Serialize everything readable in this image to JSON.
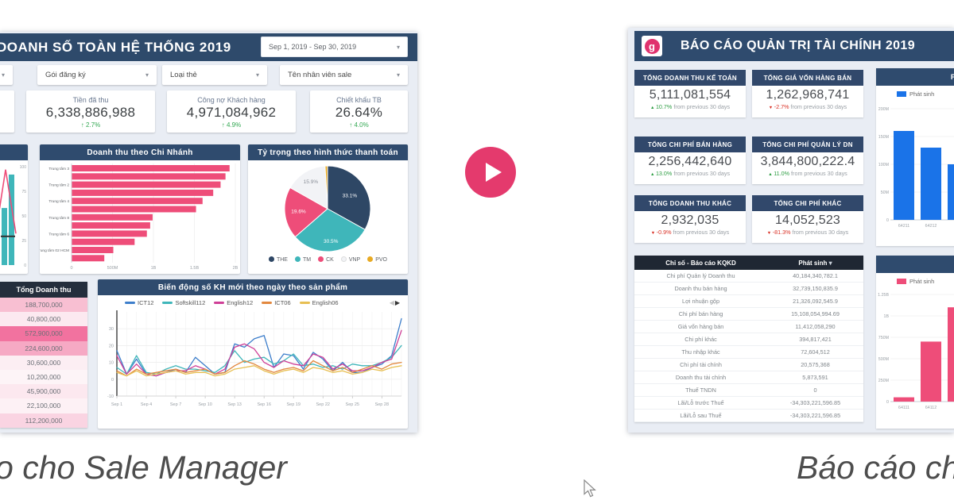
{
  "page": {
    "left_caption": "o cho Sale Manager",
    "right_caption": "Báo cáo cho",
    "accent_color": "#e43a6d"
  },
  "left_dashboard": {
    "title": "DOANH SỐ TOÀN HỆ THỐNG 2019",
    "date_range": "Sep 1, 2019 - Sep 30, 2019",
    "filters": [
      "Gói đăng ký",
      "Loại thẻ",
      "Tên nhân viên sale"
    ],
    "kpis": [
      {
        "label": "Tiền đã thu",
        "value": "6,338,886,988",
        "delta": "2.7%",
        "direction": "up"
      },
      {
        "label": "Công nợ Khách hàng",
        "value": "4,971,084,962",
        "delta": "4.9%",
        "direction": "up"
      },
      {
        "label": "Chiết khấu TB",
        "value": "26.64%",
        "delta": "4.0%",
        "direction": "up"
      }
    ],
    "delta_up_color": "#34a853",
    "delta_down_color": "#d93025",
    "revenue_table": {
      "header": "Tổng Doanh thu",
      "rows": [
        {
          "value": "188,700,000",
          "bg": "#f8bfd2"
        },
        {
          "value": "40,800,000",
          "bg": "#fce9f0"
        },
        {
          "value": "572,900,000",
          "bg": "#f2729f"
        },
        {
          "value": "224,600,000",
          "bg": "#f6a9c4"
        },
        {
          "value": "30,600,000",
          "bg": "#fceef3"
        },
        {
          "value": "10,200,000",
          "bg": "#fdf4f7"
        },
        {
          "value": "45,900,000",
          "bg": "#fce8ef"
        },
        {
          "value": "22,100,000",
          "bg": "#fdf1f5"
        },
        {
          "value": "112,200,000",
          "bg": "#fad4e2"
        }
      ]
    },
    "line_legend_arrows": "◀▶"
  },
  "right_dashboard": {
    "title": "BÁO CÁO QUẢN TRỊ TÀI CHÍNH 2019",
    "logo_letter": "g",
    "kpis": [
      {
        "label": "TỔNG DOANH THU KẾ TOÁN",
        "value": "5,111,081,554",
        "delta": "10.7%",
        "direction": "up",
        "suffix": "from previous 30 days"
      },
      {
        "label": "TỔNG GIÁ VỐN HÀNG BÁN",
        "value": "1,262,968,741",
        "delta": "-2.7%",
        "direction": "down",
        "suffix": "from previous 30 days"
      },
      {
        "label": "TỔNG CHI PHÍ BÁN HÀNG",
        "value": "2,256,442,640",
        "delta": "13.0%",
        "direction": "up",
        "suffix": "from previous 30 days"
      },
      {
        "label": "TỔNG CHI PHÍ QUẢN LÝ DN",
        "value": "3,844,800,222.4",
        "delta": "11.0%",
        "direction": "up",
        "suffix": "from previous 30 days"
      },
      {
        "label": "TỔNG DOANH THU KHÁC",
        "value": "2,932,035",
        "delta": "-0.9%",
        "direction": "down",
        "suffix": "from previous 30 days"
      },
      {
        "label": "TỔNG CHI PHÍ KHÁC",
        "value": "14,052,523",
        "delta": "-81.3%",
        "direction": "down",
        "suffix": "from previous 30 days"
      }
    ],
    "table": {
      "header_left": "Chỉ số - Báo cáo KQKD",
      "header_right": "Phát sinh",
      "rows": [
        {
          "label": "Chi phí Quản lý Doanh thu",
          "value": "40,184,340,782.1"
        },
        {
          "label": "Doanh thu bán hàng",
          "value": "32,739,150,835.9"
        },
        {
          "label": "Lợi nhuận gộp",
          "value": "21,326,092,545.9"
        },
        {
          "label": "Chi phí bán hàng",
          "value": "15,108,054,994.69"
        },
        {
          "label": "Giá vốn hàng bán",
          "value": "11,412,058,290"
        },
        {
          "label": "Chi phí khác",
          "value": "394,817,421"
        },
        {
          "label": "Thu nhập khác",
          "value": "72,604,512"
        },
        {
          "label": "Chi phí tài chính",
          "value": "20,575,368"
        },
        {
          "label": "Doanh thu tài chính",
          "value": "5,873,591"
        },
        {
          "label": "Thuế TNDN",
          "value": "0"
        },
        {
          "label": "Lãi/Lỗ trước Thuế",
          "value": "-34,303,221,596.85"
        },
        {
          "label": "Lãi/Lỗ sau Thuế",
          "value": "-34,303,221,596.85"
        }
      ]
    }
  },
  "chart_data": [
    {
      "id": "mini_combo",
      "type": "bar+line",
      "title": "",
      "note": "chart partially cut off at left edge of frame",
      "bar_color": "#3fb6ba",
      "line_color": "#ee4d79",
      "bar_values": [
        58,
        92
      ],
      "line_values": [
        8,
        97,
        32
      ],
      "marker_value": 30,
      "y_ticks": [
        100,
        75,
        50,
        25,
        0
      ],
      "ylim": [
        0,
        100
      ]
    },
    {
      "id": "branch_bars",
      "type": "bar",
      "orientation": "horizontal",
      "title": "Doanh thu theo Chi Nhánh",
      "color": "#ee4d79",
      "categories": [
        "Trung tâm 3",
        "",
        "Trung tâm 2",
        "",
        "Trung tâm 4",
        "",
        "Trung tâm 8",
        "",
        "Trung tâm 6",
        "",
        "Trung tâm 02 HCM",
        ""
      ],
      "values_billions": [
        1.93,
        1.88,
        1.82,
        1.73,
        1.6,
        1.52,
        0.99,
        0.96,
        0.92,
        0.77,
        0.51,
        0.4
      ],
      "x_ticks": [
        "0",
        "500M",
        "1B",
        "1.5B",
        "2B"
      ],
      "xlim_billions": [
        0,
        2
      ]
    },
    {
      "id": "payment_pie",
      "type": "pie",
      "title": "Tỷ trọng theo hình thức thanh toán",
      "labels": [
        "THE",
        "TM",
        "CK",
        "VNP",
        "PVO"
      ],
      "values_pct": [
        33.1,
        30.5,
        19.6,
        15.9,
        0.9
      ],
      "colors": [
        "#2e4765",
        "#3fb6ba",
        "#ee4d79",
        "#f2f3f6",
        "#e8aa23"
      ],
      "shown_labels": [
        "33.1%",
        "30.5%",
        "19.6%",
        "15.9%",
        ""
      ]
    },
    {
      "id": "daily_lines",
      "type": "line",
      "title": "Biến động số KH mới theo ngày theo sản phẩm",
      "x_ticks": [
        "Sep 1",
        "Sep 4",
        "Sep 7",
        "Sep 10",
        "Sep 13",
        "Sep 16",
        "Sep 19",
        "Sep 22",
        "Sep 25",
        "Sep 28"
      ],
      "y_ticks": [
        30,
        20,
        10,
        0,
        -10
      ],
      "ylim": [
        -10,
        40
      ],
      "series": [
        {
          "name": "ICT12",
          "color": "#3d7ecb",
          "values": [
            17,
            3,
            12,
            3,
            2,
            4,
            6,
            4,
            13,
            8,
            3,
            4,
            21,
            19,
            24,
            26,
            7,
            15,
            14,
            6,
            16,
            12,
            5,
            10,
            4,
            4,
            7,
            9,
            14,
            36
          ]
        },
        {
          "name": "Softskill112",
          "color": "#3fb6ba",
          "values": [
            7,
            3,
            14,
            4,
            3,
            6,
            8,
            6,
            6,
            5,
            4,
            8,
            17,
            10,
            12,
            13,
            9,
            11,
            15,
            8,
            9,
            7,
            8,
            6,
            9,
            8,
            8,
            10,
            13,
            20
          ]
        },
        {
          "name": "English12",
          "color": "#cf3f97",
          "values": [
            14,
            3,
            9,
            3,
            2,
            4,
            5,
            5,
            8,
            6,
            3,
            6,
            19,
            21,
            18,
            10,
            7,
            11,
            9,
            8,
            15,
            13,
            6,
            9,
            5,
            5,
            7,
            10,
            12,
            29
          ]
        },
        {
          "name": "ICT06",
          "color": "#e2883f",
          "values": [
            5,
            2,
            6,
            3,
            4,
            5,
            6,
            4,
            5,
            6,
            3,
            4,
            8,
            11,
            9,
            6,
            4,
            6,
            7,
            5,
            11,
            8,
            5,
            7,
            4,
            6,
            8,
            6,
            9,
            10
          ]
        },
        {
          "name": "English06",
          "color": "#e7bf52",
          "values": [
            4,
            2,
            5,
            2,
            3,
            4,
            5,
            3,
            4,
            4,
            2,
            3,
            6,
            7,
            8,
            5,
            3,
            5,
            6,
            4,
            7,
            6,
            4,
            5,
            3,
            4,
            6,
            5,
            7,
            8
          ]
        }
      ]
    },
    {
      "id": "cost_642",
      "type": "bar",
      "title_partial": "PH",
      "legend": "Phát sinh",
      "color": "#1a73e8",
      "categories": [
        "64211",
        "64212",
        ""
      ],
      "values_millions": [
        160,
        130,
        100
      ],
      "y_ticks": [
        "200M",
        "150M",
        "100M",
        "50M",
        "0"
      ],
      "ylim_millions": [
        0,
        200
      ]
    },
    {
      "id": "cost_641",
      "type": "bar",
      "title_partial": "",
      "legend": "Phát sinh",
      "color": "#ee4d79",
      "categories": [
        "64111",
        "64112",
        ""
      ],
      "values_millions": [
        50,
        700,
        1100
      ],
      "y_ticks": [
        "1.25B",
        "1B",
        "750M",
        "500M",
        "250M",
        "0"
      ],
      "ylim_millions": [
        0,
        1250
      ]
    }
  ]
}
